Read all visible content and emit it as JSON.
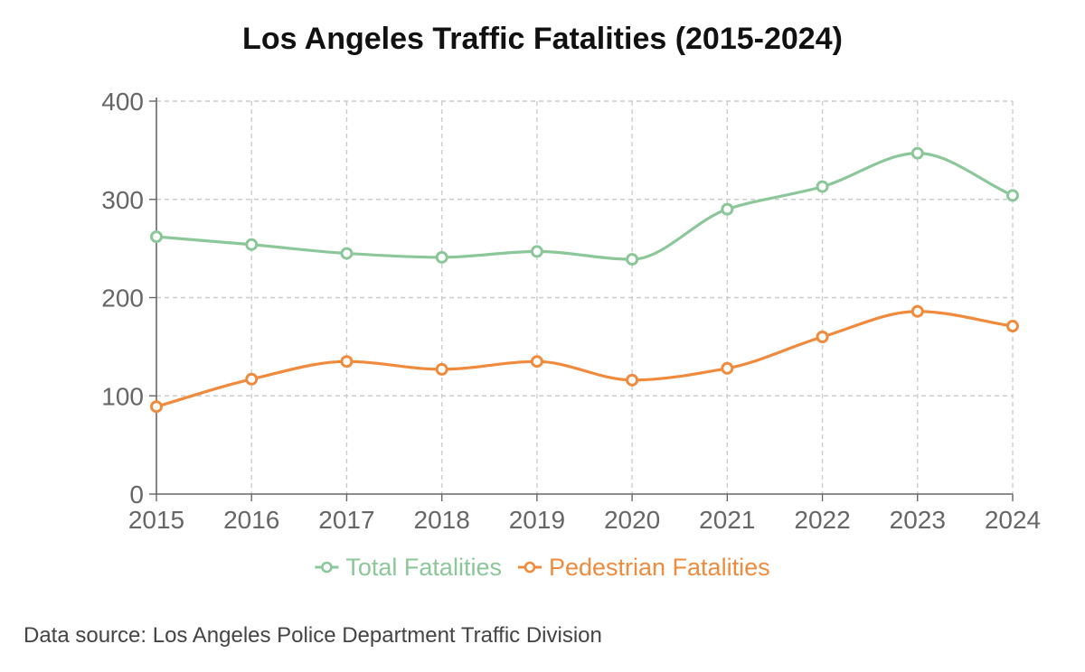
{
  "chart_data": {
    "type": "line",
    "title": "Los Angeles Traffic Fatalities (2015-2024)",
    "xlabel": "",
    "ylabel": "",
    "x": [
      "2015",
      "2016",
      "2017",
      "2018",
      "2019",
      "2020",
      "2021",
      "2022",
      "2023",
      "2024"
    ],
    "ylim": [
      0,
      400
    ],
    "yticks": [
      "0",
      "100",
      "200",
      "300",
      "400"
    ],
    "grid": true,
    "legend_position": "bottom",
    "series": [
      {
        "name": "Total Fatalities",
        "color": "#8cc79a",
        "values": [
          262,
          254,
          245,
          241,
          247,
          239,
          290,
          313,
          347,
          304
        ]
      },
      {
        "name": "Pedestrian Fatalities",
        "color": "#f08a3c",
        "values": [
          89,
          117,
          135,
          127,
          135,
          116,
          128,
          160,
          186,
          171
        ]
      }
    ]
  },
  "footer": {
    "source": "Data source: Los Angeles Police Department Traffic Division"
  }
}
